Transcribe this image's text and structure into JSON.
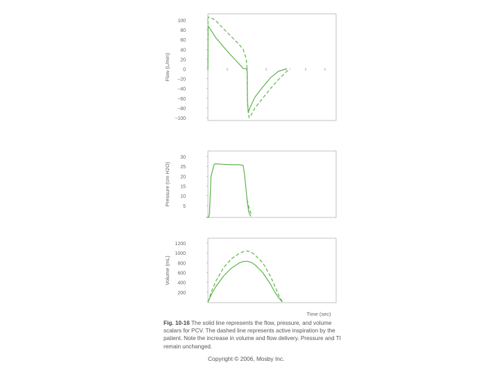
{
  "colors": {
    "series": "#5bb24a",
    "axis": "#999999",
    "text": "#666666"
  },
  "chart_data": [
    {
      "type": "line",
      "ylabel": "Flow (L/min)",
      "xlabel": "",
      "yticks": [
        100,
        80,
        60,
        40,
        20,
        0,
        -20,
        -40,
        -60,
        -80,
        -100
      ],
      "ylim": [
        -100,
        110
      ],
      "xlim": [
        0,
        10
      ],
      "series": [
        {
          "style": "solid",
          "x": [
            0,
            0.02,
            0.2,
            1,
            2,
            3,
            4,
            4.5,
            4.9,
            5.0,
            5.05,
            5.15,
            5.3,
            6,
            7,
            8,
            9,
            10
          ],
          "y": [
            0,
            88,
            84,
            64,
            45,
            27,
            10,
            1,
            0,
            0,
            -65,
            -90,
            -82,
            -58,
            -37,
            -18,
            -5,
            0
          ]
        },
        {
          "style": "dashed",
          "x": [
            0,
            0.02,
            0.3,
            1,
            2,
            3,
            4,
            4.5,
            4.9,
            5.0,
            5.05,
            5.25,
            5.5,
            6,
            7,
            8,
            9,
            10,
            10.5
          ],
          "y": [
            0,
            106,
            106,
            99,
            82,
            66,
            50,
            40,
            20,
            0,
            -70,
            -100,
            -95,
            -80,
            -60,
            -40,
            -22,
            -6,
            0
          ]
        }
      ]
    },
    {
      "type": "line",
      "ylabel": "Pressure (cm H2O)",
      "xlabel": "",
      "yticks": [
        30,
        25,
        20,
        15,
        10,
        5
      ],
      "ylim": [
        0,
        32
      ],
      "xlim": [
        0,
        10
      ],
      "series": [
        {
          "style": "solid",
          "x": [
            -0.2,
            0.1,
            0.2,
            0.4,
            0.8,
            1,
            2,
            3,
            4,
            4.5,
            4.7,
            5.0,
            5.2,
            5.4,
            5.5
          ],
          "y": [
            -1,
            -1,
            1,
            20,
            26,
            26.3,
            26,
            25.8,
            25.8,
            25.5,
            20,
            8,
            2,
            0,
            -0.5
          ]
        },
        {
          "style": "dashed",
          "x": [
            5.0,
            5.3,
            5.6
          ],
          "y": [
            8,
            3,
            0
          ]
        }
      ]
    },
    {
      "type": "line",
      "ylabel": "Volume (mL)",
      "xlabel": "Time (sec)",
      "yticks": [
        1200,
        1000,
        800,
        600,
        400,
        200
      ],
      "ylim": [
        0,
        1300
      ],
      "xlim": [
        0,
        10
      ],
      "series": [
        {
          "style": "solid",
          "x": [
            0,
            0.5,
            1,
            2,
            3,
            4,
            4.5,
            5,
            5.5,
            6,
            7,
            8,
            8.5,
            9,
            9.5
          ],
          "y": [
            0,
            170,
            310,
            530,
            690,
            795,
            825,
            830,
            810,
            760,
            600,
            360,
            210,
            90,
            0
          ]
        },
        {
          "style": "dashed",
          "x": [
            0,
            0.5,
            1,
            2,
            3,
            4,
            4.5,
            5,
            5.5,
            6,
            7,
            8,
            8.5,
            9,
            9.5
          ],
          "y": [
            0,
            230,
            420,
            700,
            880,
            990,
            1025,
            1040,
            1020,
            960,
            800,
            520,
            340,
            150,
            0
          ]
        }
      ]
    }
  ],
  "caption": {
    "figure_label": "Fig. 10-16",
    "text": " The solid line represents the flow, pressure, and volume scalars for PCV. The dashed line represents active inspiration by the patient. Note the increase in volume and flow delivery. Pressure and TI remain unchanged."
  },
  "copyright": "Copyright © 2006, Mosby Inc."
}
